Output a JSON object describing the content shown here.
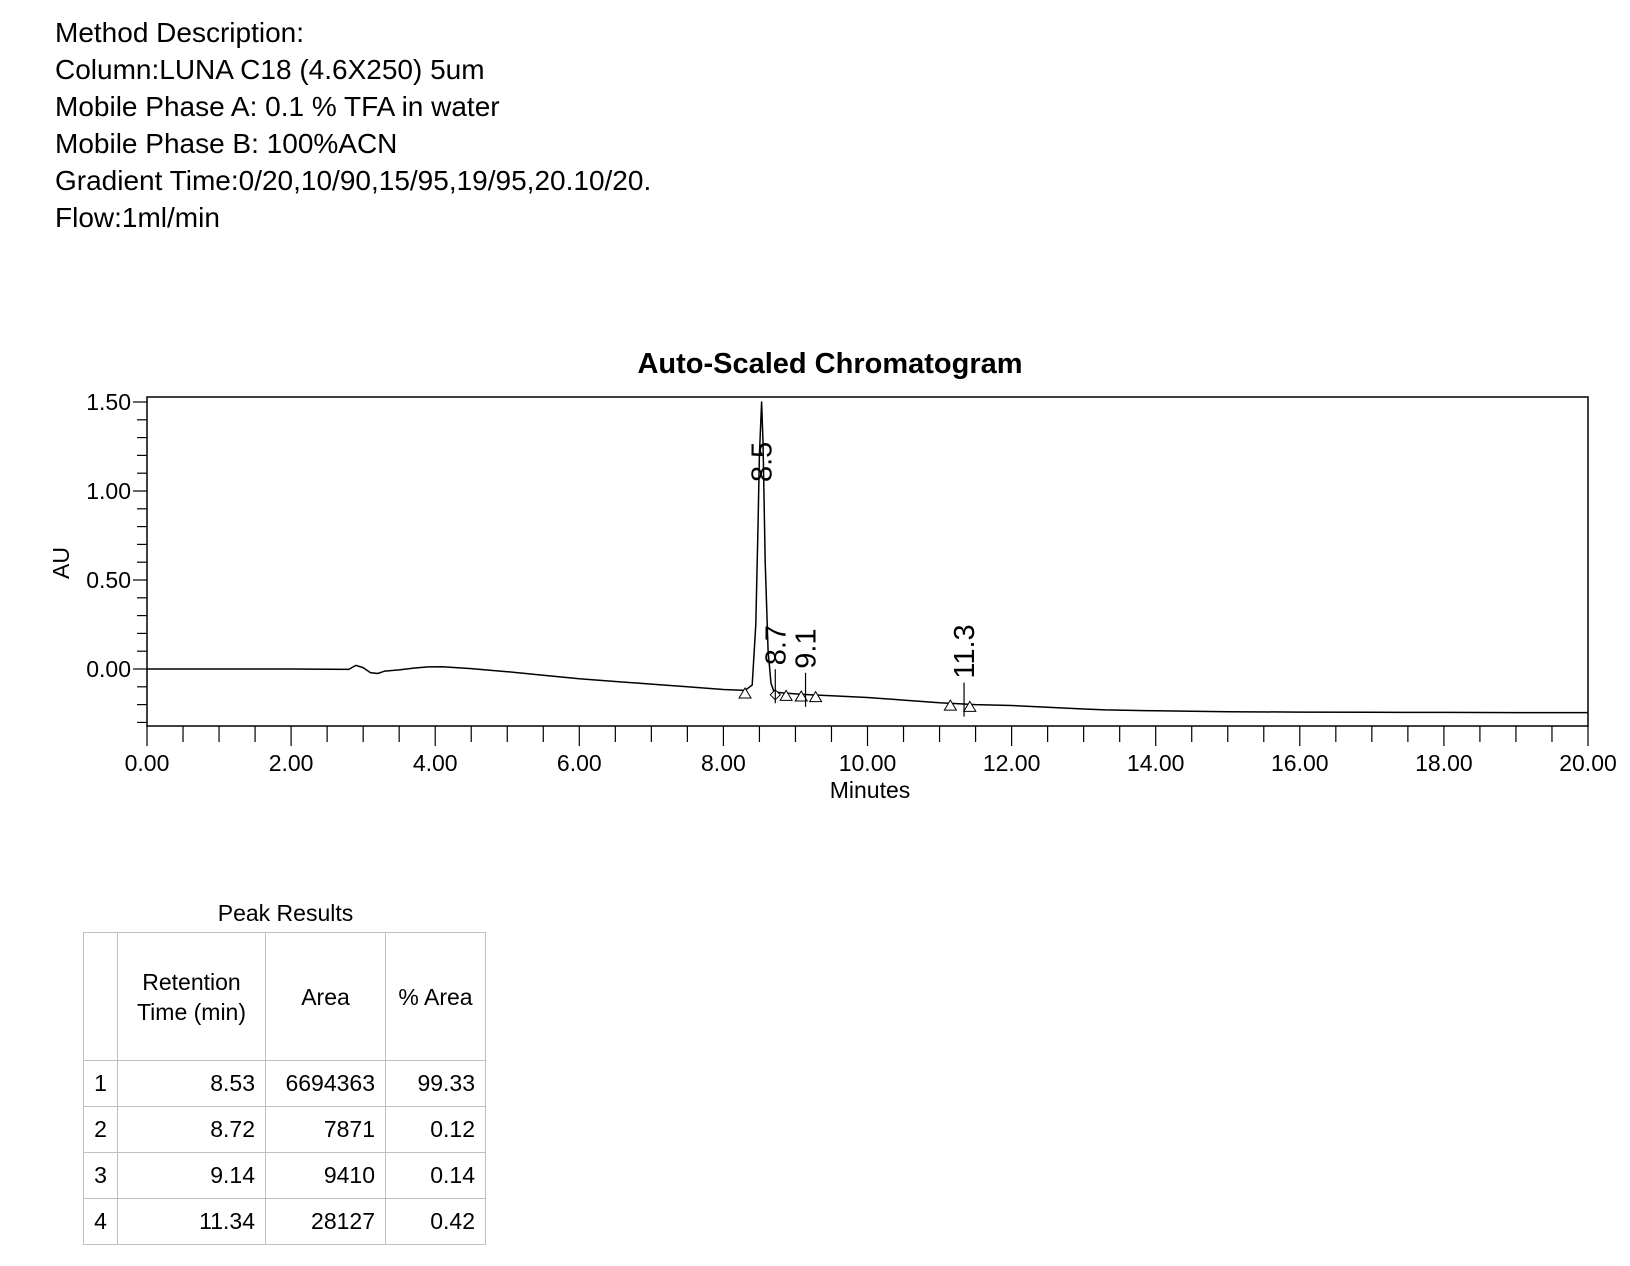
{
  "method": {
    "lines": [
      "Method Description:",
      "Column:LUNA C18 (4.6X250) 5um",
      "Mobile Phase A: 0.1 % TFA in water",
      "Mobile Phase B: 100%ACN",
      "Gradient Time:0/20,10/90,15/95,19/95,20.10/20.",
      "Flow:1ml/min"
    ]
  },
  "chart_data": {
    "type": "line",
    "title": "Auto-Scaled Chromatogram",
    "xlabel": "Minutes",
    "ylabel": "AU",
    "xlim": [
      0,
      20
    ],
    "ylim": [
      -0.32,
      1.54
    ],
    "x_ticks": [
      "0.00",
      "2.00",
      "4.00",
      "6.00",
      "8.00",
      "10.00",
      "12.00",
      "14.00",
      "16.00",
      "18.00",
      "20.00"
    ],
    "y_ticks": [
      "0.00",
      "0.50",
      "1.00",
      "1.50"
    ],
    "grid": false,
    "series": [
      {
        "x": [
          0.0,
          1.0,
          2.0,
          2.8,
          2.9,
          3.0,
          3.1,
          3.2,
          3.3,
          3.5,
          3.7,
          3.9,
          4.1,
          4.5,
          5.0,
          5.5,
          6.0,
          6.5,
          7.0,
          7.5,
          8.0,
          8.3,
          8.4,
          8.45,
          8.48,
          8.5,
          8.53,
          8.55,
          8.58,
          8.62,
          8.66,
          8.7,
          8.75,
          8.8,
          9.0,
          9.2,
          9.5,
          10.0,
          10.5,
          11.0,
          11.5,
          12.0,
          12.5,
          13.0,
          13.3,
          14.0,
          15.0,
          16.0,
          17.0,
          18.0,
          19.0,
          20.0
        ],
        "y": [
          0.0,
          0.0,
          0.0,
          -0.002,
          0.02,
          0.008,
          -0.02,
          -0.025,
          -0.012,
          -0.005,
          0.005,
          0.012,
          0.013,
          0.002,
          -0.015,
          -0.035,
          -0.055,
          -0.07,
          -0.085,
          -0.1,
          -0.115,
          -0.12,
          -0.09,
          0.25,
          0.8,
          1.2,
          1.5,
          1.28,
          0.6,
          0.1,
          -0.08,
          -0.125,
          -0.13,
          -0.133,
          -0.14,
          -0.145,
          -0.15,
          -0.16,
          -0.175,
          -0.19,
          -0.2,
          -0.205,
          -0.215,
          -0.225,
          -0.23,
          -0.235,
          -0.24,
          -0.242,
          -0.243,
          -0.244,
          -0.245,
          -0.245
        ]
      }
    ],
    "peak_labels": [
      {
        "label": "8.5",
        "x": 8.53,
        "y": 1.5
      },
      {
        "label": "8.7",
        "x": 8.72,
        "y": -0.125
      },
      {
        "label": "9.1",
        "x": 9.14,
        "y": -0.145
      },
      {
        "label": "11.3",
        "x": 11.34,
        "y": -0.2
      }
    ],
    "peak_markers": [
      {
        "x": 8.3,
        "y": -0.135,
        "shape": "triangle"
      },
      {
        "x": 8.72,
        "y": -0.145,
        "shape": "diamond"
      },
      {
        "x": 8.87,
        "y": -0.148,
        "shape": "triangle"
      },
      {
        "x": 9.08,
        "y": -0.152,
        "shape": "triangle"
      },
      {
        "x": 9.28,
        "y": -0.155,
        "shape": "triangle"
      },
      {
        "x": 11.15,
        "y": -0.203,
        "shape": "triangle"
      },
      {
        "x": 11.42,
        "y": -0.21,
        "shape": "triangle"
      }
    ]
  },
  "table": {
    "caption": "Peak Results",
    "headers": [
      "",
      "Retention Time (min)",
      "Area",
      "% Area"
    ],
    "rows": [
      [
        "1",
        "8.53",
        "6694363",
        "99.33"
      ],
      [
        "2",
        "8.72",
        "7871",
        "0.12"
      ],
      [
        "3",
        "9.14",
        "9410",
        "0.14"
      ],
      [
        "4",
        "11.34",
        "28127",
        "0.42"
      ]
    ]
  }
}
